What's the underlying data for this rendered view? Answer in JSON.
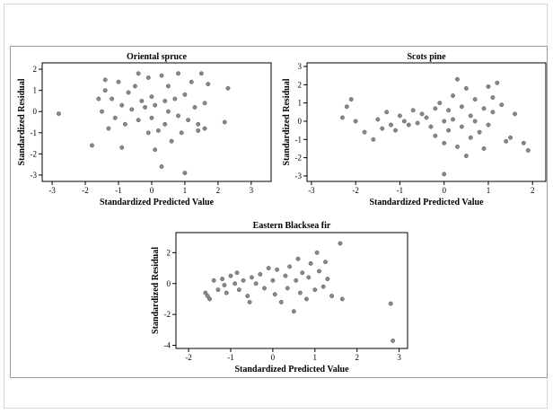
{
  "chart_data": [
    {
      "type": "scatter",
      "title": "Oriental spruce",
      "xlabel": "Standardized Predicted Value",
      "ylabel": "Standardized Residual",
      "xlim": [
        -3.3,
        3.6
      ],
      "ylim": [
        -3.3,
        2.3
      ],
      "xticks": [
        -3,
        -2,
        -1,
        0,
        1,
        2,
        3
      ],
      "yticks": [
        -3,
        -2,
        -1,
        0,
        1,
        2
      ],
      "grid": false,
      "points": [
        [
          -2.8,
          -0.1
        ],
        [
          -1.8,
          -1.6
        ],
        [
          -1.6,
          0.6
        ],
        [
          -1.5,
          0.0
        ],
        [
          -1.4,
          1.5
        ],
        [
          -1.4,
          1.0
        ],
        [
          -1.3,
          -0.8
        ],
        [
          -1.2,
          0.6
        ],
        [
          -1.1,
          -0.3
        ],
        [
          -1.0,
          1.4
        ],
        [
          -0.9,
          -1.7
        ],
        [
          -0.9,
          0.3
        ],
        [
          -0.8,
          -0.6
        ],
        [
          -0.7,
          0.9
        ],
        [
          -0.6,
          0.1
        ],
        [
          -0.5,
          1.2
        ],
        [
          -0.4,
          1.8
        ],
        [
          -0.4,
          -0.4
        ],
        [
          -0.3,
          0.5
        ],
        [
          -0.2,
          0.2
        ],
        [
          -0.1,
          1.6
        ],
        [
          -0.1,
          -1.0
        ],
        [
          0.0,
          0.7
        ],
        [
          0.0,
          -0.3
        ],
        [
          0.1,
          0.3
        ],
        [
          0.1,
          -1.8
        ],
        [
          0.2,
          -0.9
        ],
        [
          0.3,
          1.7
        ],
        [
          0.3,
          -2.6
        ],
        [
          0.4,
          0.5
        ],
        [
          0.4,
          -0.6
        ],
        [
          0.5,
          1.2
        ],
        [
          0.5,
          0.0
        ],
        [
          0.6,
          -1.4
        ],
        [
          0.7,
          0.6
        ],
        [
          0.8,
          1.8
        ],
        [
          0.8,
          -0.2
        ],
        [
          0.9,
          -1.0
        ],
        [
          1.0,
          0.8
        ],
        [
          1.0,
          -2.9
        ],
        [
          1.1,
          -0.4
        ],
        [
          1.2,
          1.4
        ],
        [
          1.3,
          0.2
        ],
        [
          1.4,
          -0.6
        ],
        [
          1.4,
          -0.9
        ],
        [
          1.5,
          1.8
        ],
        [
          1.6,
          0.4
        ],
        [
          1.6,
          -0.8
        ],
        [
          1.7,
          1.3
        ],
        [
          2.2,
          -0.5
        ],
        [
          2.3,
          1.1
        ]
      ]
    },
    {
      "type": "scatter",
      "title": "Scots pine",
      "xlabel": "Standardized Predicted Value",
      "ylabel": "Standardized Residual",
      "xlim": [
        -3.1,
        2.3
      ],
      "ylim": [
        -3.3,
        3.2
      ],
      "xticks": [
        -3,
        -2,
        -1,
        0,
        1,
        2
      ],
      "yticks": [
        -3,
        -2,
        -1,
        0,
        1,
        2,
        3
      ],
      "grid": false,
      "points": [
        [
          -2.3,
          0.2
        ],
        [
          -2.2,
          0.8
        ],
        [
          -2.1,
          1.2
        ],
        [
          -2.0,
          0.0
        ],
        [
          -1.8,
          -0.6
        ],
        [
          -1.6,
          -1.0
        ],
        [
          -1.5,
          0.1
        ],
        [
          -1.4,
          -0.4
        ],
        [
          -1.3,
          0.5
        ],
        [
          -1.2,
          -0.2
        ],
        [
          -1.1,
          -0.5
        ],
        [
          -1.0,
          0.3
        ],
        [
          -0.9,
          0.0
        ],
        [
          -0.8,
          -0.2
        ],
        [
          -0.7,
          0.6
        ],
        [
          -0.6,
          -0.1
        ],
        [
          -0.5,
          0.4
        ],
        [
          -0.4,
          0.2
        ],
        [
          -0.3,
          -0.3
        ],
        [
          -0.2,
          0.7
        ],
        [
          -0.2,
          -0.8
        ],
        [
          -0.1,
          1.0
        ],
        [
          0.0,
          0.0
        ],
        [
          0.0,
          -1.2
        ],
        [
          0.0,
          -2.9
        ],
        [
          0.1,
          0.6
        ],
        [
          0.1,
          -0.5
        ],
        [
          0.2,
          1.4
        ],
        [
          0.2,
          0.1
        ],
        [
          0.3,
          2.3
        ],
        [
          0.3,
          -1.4
        ],
        [
          0.4,
          0.8
        ],
        [
          0.4,
          -0.3
        ],
        [
          0.5,
          1.8
        ],
        [
          0.5,
          -1.9
        ],
        [
          0.6,
          0.3
        ],
        [
          0.6,
          -0.9
        ],
        [
          0.7,
          1.2
        ],
        [
          0.7,
          0.0
        ],
        [
          0.8,
          -0.6
        ],
        [
          0.9,
          0.7
        ],
        [
          0.9,
          -1.5
        ],
        [
          1.0,
          1.9
        ],
        [
          1.0,
          -0.2
        ],
        [
          1.1,
          0.5
        ],
        [
          1.1,
          1.3
        ],
        [
          1.2,
          2.1
        ],
        [
          1.3,
          0.9
        ],
        [
          1.4,
          -1.1
        ],
        [
          1.5,
          -0.9
        ],
        [
          1.6,
          0.4
        ],
        [
          1.8,
          -1.2
        ],
        [
          1.9,
          -1.6
        ]
      ]
    },
    {
      "type": "scatter",
      "title": "Eastern Blacksea fir",
      "xlabel": "Standardized Predicted Value",
      "ylabel": "Standardized Residual",
      "xlim": [
        -2.3,
        3.2
      ],
      "ylim": [
        -4.2,
        3.3
      ],
      "xticks": [
        -2,
        -1,
        0,
        1,
        2,
        3
      ],
      "yticks": [
        -4,
        -2,
        0,
        2
      ],
      "grid": false,
      "points": [
        [
          -1.6,
          -0.6
        ],
        [
          -1.55,
          -0.8
        ],
        [
          -1.5,
          -1.0
        ],
        [
          -1.4,
          0.2
        ],
        [
          -1.3,
          -0.4
        ],
        [
          -1.2,
          0.3
        ],
        [
          -1.15,
          -0.1
        ],
        [
          -1.1,
          -0.6
        ],
        [
          -1.0,
          0.5
        ],
        [
          -0.9,
          0.0
        ],
        [
          -0.85,
          0.7
        ],
        [
          -0.8,
          -0.4
        ],
        [
          -0.7,
          0.2
        ],
        [
          -0.6,
          -0.8
        ],
        [
          -0.55,
          -1.2
        ],
        [
          -0.5,
          0.4
        ],
        [
          -0.4,
          0.0
        ],
        [
          -0.3,
          0.6
        ],
        [
          -0.2,
          -0.3
        ],
        [
          -0.1,
          1.0
        ],
        [
          0.0,
          0.2
        ],
        [
          0.05,
          -0.7
        ],
        [
          0.1,
          0.9
        ],
        [
          0.2,
          -1.2
        ],
        [
          0.3,
          0.5
        ],
        [
          0.35,
          -0.3
        ],
        [
          0.4,
          1.1
        ],
        [
          0.5,
          -1.8
        ],
        [
          0.55,
          0.2
        ],
        [
          0.6,
          1.6
        ],
        [
          0.65,
          -0.6
        ],
        [
          0.7,
          0.7
        ],
        [
          0.8,
          -1.0
        ],
        [
          0.85,
          0.4
        ],
        [
          0.9,
          1.3
        ],
        [
          1.0,
          -0.4
        ],
        [
          1.05,
          2.0
        ],
        [
          1.1,
          0.8
        ],
        [
          1.2,
          -0.2
        ],
        [
          1.25,
          1.4
        ],
        [
          1.3,
          0.3
        ],
        [
          1.4,
          -0.8
        ],
        [
          1.6,
          2.6
        ],
        [
          1.65,
          -1.0
        ],
        [
          2.8,
          -1.3
        ],
        [
          2.85,
          -3.7
        ]
      ]
    }
  ]
}
